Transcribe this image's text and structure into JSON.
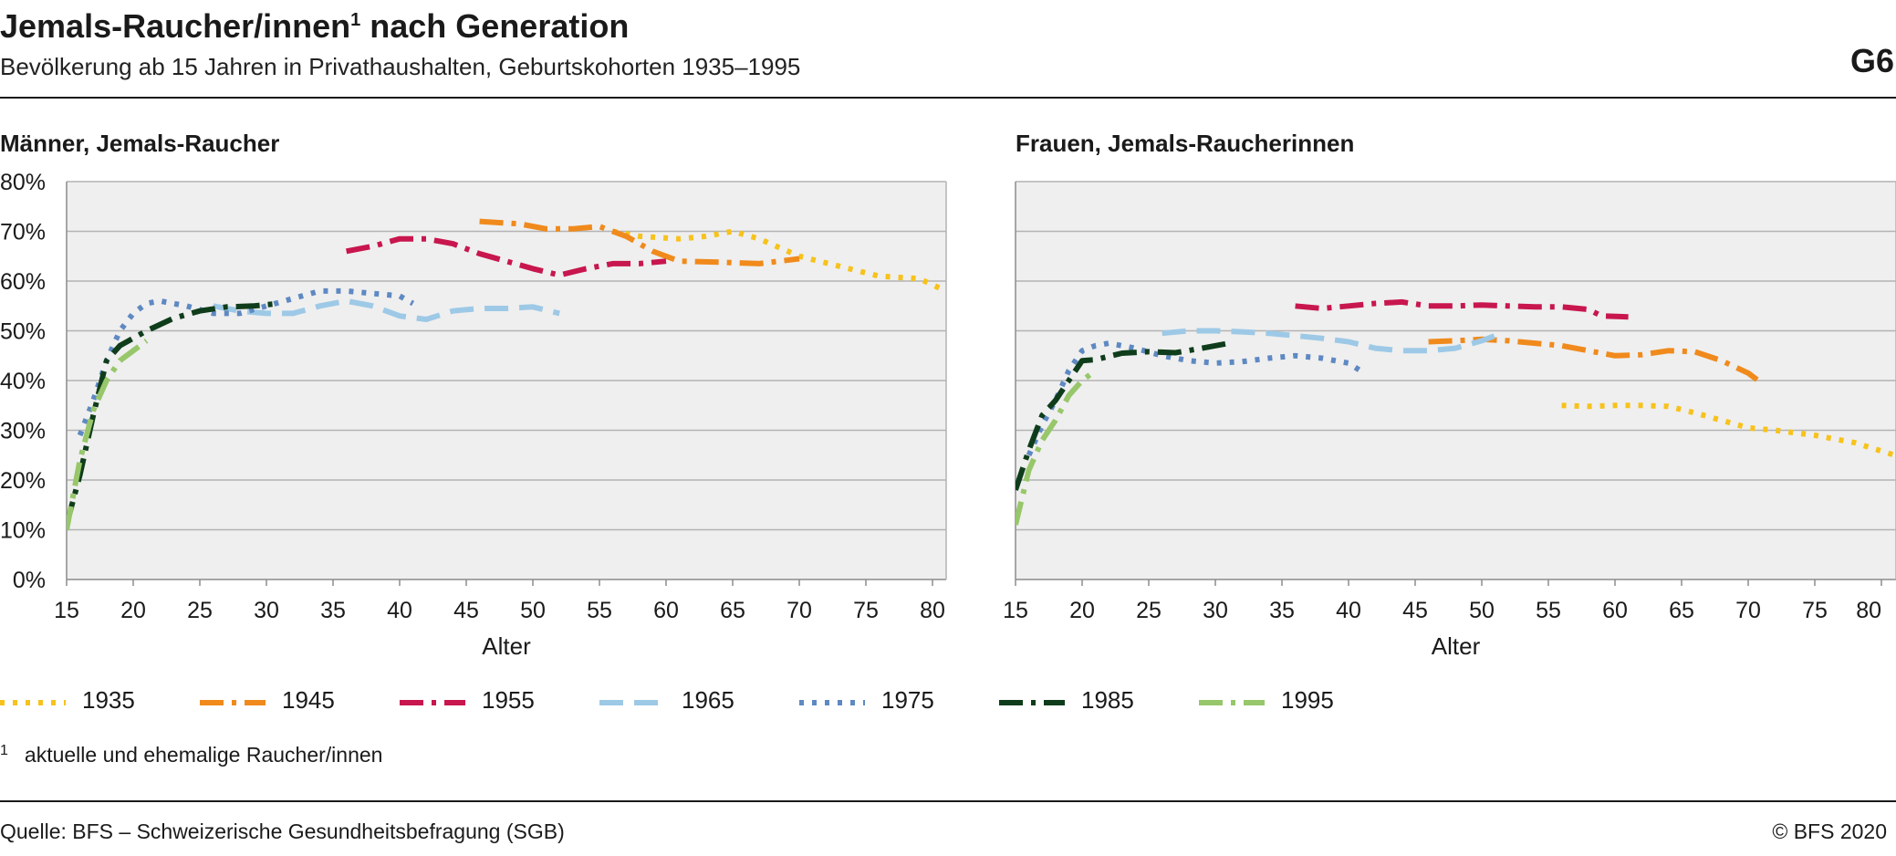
{
  "header": {
    "title": "Jemals-Raucher/innen",
    "title_sup": "1",
    "title_rest": " nach Generation",
    "subtitle": "Bevölkerung ab 15 Jahren in Privathaushalten, Geburtskohorten 1935–1995",
    "figure_number": "G6"
  },
  "footnote": {
    "mark": "1",
    "text": "aktuelle und ehemalige Raucher/innen"
  },
  "source": "Quelle: BFS – Schweizerische Gesundheitsbefragung (SGB)",
  "copyright": "© BFS 2020",
  "colors": {
    "1935": "#f7c21b",
    "1945": "#f08a1c",
    "1955": "#c8164e",
    "1965": "#9dc9e6",
    "1975": "#5e89c2",
    "1985": "#0f3d1b",
    "1995": "#97c76a",
    "plot_bg": "#efefef",
    "grid": "#b3b3b3"
  },
  "legend": [
    {
      "label": "1935",
      "dash": "dot"
    },
    {
      "label": "1945",
      "dash": "dashdot"
    },
    {
      "label": "1955",
      "dash": "dashdot"
    },
    {
      "label": "1965",
      "dash": "dash"
    },
    {
      "label": "1975",
      "dash": "dot"
    },
    {
      "label": "1985",
      "dash": "dashdot"
    },
    {
      "label": "1995",
      "dash": "dashdot"
    }
  ],
  "chart_data": [
    {
      "type": "line",
      "title": "Männer, Jemals-Raucher",
      "xlabel": "Alter",
      "ylabel": "",
      "xlim": [
        15,
        81
      ],
      "ylim": [
        0,
        80
      ],
      "xticks": [
        15,
        20,
        25,
        30,
        35,
        40,
        45,
        50,
        55,
        60,
        65,
        70,
        75,
        80
      ],
      "yticks": [
        "0%",
        "10%",
        "20%",
        "30%",
        "40%",
        "50%",
        "60%",
        "70%",
        "80%"
      ],
      "grid": true,
      "legend_position": "bottom",
      "series": [
        {
          "name": "1935",
          "points": [
            [
              56,
              70
            ],
            [
              58,
              69
            ],
            [
              61,
              68.5
            ],
            [
              63,
              69
            ],
            [
              65,
              70
            ],
            [
              67,
              68.5
            ],
            [
              70,
              65
            ],
            [
              73,
              63
            ],
            [
              76,
              61
            ],
            [
              79,
              60.5
            ],
            [
              81,
              58
            ]
          ]
        },
        {
          "name": "1945",
          "points": [
            [
              46,
              72
            ],
            [
              49,
              71.5
            ],
            [
              51,
              70.5
            ],
            [
              53,
              70.5
            ],
            [
              55,
              71
            ],
            [
              57,
              69
            ],
            [
              59,
              66
            ],
            [
              61,
              64
            ],
            [
              64,
              63.8
            ],
            [
              67,
              63.5
            ],
            [
              70,
              64.5
            ]
          ]
        },
        {
          "name": "1955",
          "points": [
            [
              36,
              66
            ],
            [
              38,
              67
            ],
            [
              40,
              68.5
            ],
            [
              42,
              68.5
            ],
            [
              44,
              67.5
            ],
            [
              46,
              65.5
            ],
            [
              48,
              64
            ],
            [
              50,
              62.5
            ],
            [
              52,
              61.2
            ],
            [
              54,
              62.5
            ],
            [
              56,
              63.5
            ],
            [
              58,
              63.5
            ],
            [
              60,
              64
            ]
          ]
        },
        {
          "name": "1965",
          "points": [
            [
              26,
              55
            ],
            [
              28,
              54
            ],
            [
              30,
              53.5
            ],
            [
              32,
              53.5
            ],
            [
              34,
              55
            ],
            [
              36,
              56
            ],
            [
              38,
              55
            ],
            [
              40,
              53
            ],
            [
              42,
              52.3
            ],
            [
              44,
              54
            ],
            [
              46,
              54.5
            ],
            [
              48,
              54.5
            ],
            [
              50,
              54.8
            ],
            [
              52,
              53.5
            ]
          ]
        },
        {
          "name": "1975",
          "points": [
            [
              16,
              29
            ],
            [
              17,
              36
            ],
            [
              18,
              44
            ],
            [
              19,
              50
            ],
            [
              20,
              53.5
            ],
            [
              21,
              55.5
            ],
            [
              22,
              56
            ],
            [
              24,
              55
            ],
            [
              26,
              53.5
            ],
            [
              28,
              53.5
            ],
            [
              30,
              55
            ],
            [
              32,
              56.5
            ],
            [
              34,
              58
            ],
            [
              36,
              58
            ],
            [
              38,
              57.5
            ],
            [
              40,
              57
            ],
            [
              41,
              55.5
            ]
          ]
        },
        {
          "name": "1985",
          "points": [
            [
              15,
              11
            ],
            [
              16,
              21
            ],
            [
              17,
              33
            ],
            [
              18,
              44
            ],
            [
              19,
              47
            ],
            [
              20,
              48.5
            ],
            [
              21,
              50
            ],
            [
              23,
              52.5
            ],
            [
              25,
              54
            ],
            [
              27,
              54.8
            ],
            [
              29,
              55
            ],
            [
              31,
              55.5
            ]
          ]
        },
        {
          "name": "1995",
          "points": [
            [
              15,
              10
            ],
            [
              16,
              24
            ],
            [
              17,
              34
            ],
            [
              18,
              40
            ],
            [
              19,
              44
            ],
            [
              20,
              46
            ],
            [
              21,
              48
            ]
          ]
        }
      ]
    },
    {
      "type": "line",
      "title": "Frauen, Jemals-Raucherinnen",
      "xlabel": "Alter",
      "ylabel": "",
      "xlim": [
        15,
        81
      ],
      "ylim": [
        0,
        80
      ],
      "xticks": [
        15,
        20,
        25,
        30,
        35,
        40,
        45,
        50,
        55,
        60,
        65,
        70,
        75,
        80
      ],
      "yticks": [],
      "grid": true,
      "legend_position": "bottom",
      "series": [
        {
          "name": "1935",
          "points": [
            [
              56,
              35
            ],
            [
              58,
              34.8
            ],
            [
              60,
              35
            ],
            [
              62,
              35
            ],
            [
              64,
              34.8
            ],
            [
              66,
              33.5
            ],
            [
              68,
              32
            ],
            [
              70,
              30.5
            ],
            [
              72,
              30
            ],
            [
              75,
              29
            ],
            [
              78,
              27.5
            ],
            [
              81,
              25
            ]
          ]
        },
        {
          "name": "1945",
          "points": [
            [
              46,
              47.8
            ],
            [
              48,
              48
            ],
            [
              50,
              48.3
            ],
            [
              52,
              48
            ],
            [
              54,
              47.5
            ],
            [
              56,
              47
            ],
            [
              58,
              46
            ],
            [
              60,
              45
            ],
            [
              62,
              45.2
            ],
            [
              64,
              46
            ],
            [
              66,
              45.8
            ],
            [
              68,
              44
            ],
            [
              70,
              41.5
            ],
            [
              71,
              39.5
            ]
          ]
        },
        {
          "name": "1955",
          "points": [
            [
              36,
              55
            ],
            [
              38,
              54.5
            ],
            [
              40,
              55
            ],
            [
              42,
              55.5
            ],
            [
              44,
              55.8
            ],
            [
              46,
              55
            ],
            [
              48,
              55
            ],
            [
              50,
              55.2
            ],
            [
              52,
              55
            ],
            [
              54,
              54.8
            ],
            [
              56,
              54.8
            ],
            [
              58,
              54.3
            ],
            [
              59,
              53
            ],
            [
              61,
              52.8
            ]
          ]
        },
        {
          "name": "1965",
          "points": [
            [
              26,
              49.5
            ],
            [
              28,
              50
            ],
            [
              30,
              50
            ],
            [
              32,
              49.8
            ],
            [
              34,
              49.5
            ],
            [
              36,
              49
            ],
            [
              38,
              48.5
            ],
            [
              40,
              47.8
            ],
            [
              42,
              46.5
            ],
            [
              44,
              46
            ],
            [
              46,
              46
            ],
            [
              48,
              46.5
            ],
            [
              50,
              48
            ],
            [
              51,
              49
            ]
          ]
        },
        {
          "name": "1975",
          "points": [
            [
              16,
              25
            ],
            [
              17,
              31
            ],
            [
              18,
              36
            ],
            [
              19,
              42
            ],
            [
              20,
              46
            ],
            [
              21,
              47
            ],
            [
              22,
              47.5
            ],
            [
              24,
              46.5
            ],
            [
              26,
              45
            ],
            [
              28,
              44
            ],
            [
              30,
              43.5
            ],
            [
              32,
              43.8
            ],
            [
              34,
              44.5
            ],
            [
              36,
              45
            ],
            [
              38,
              44.5
            ],
            [
              40,
              43.5
            ],
            [
              41,
              41.8
            ]
          ]
        },
        {
          "name": "1985",
          "points": [
            [
              15,
              18
            ],
            [
              16,
              26
            ],
            [
              17,
              33
            ],
            [
              18,
              36
            ],
            [
              19,
              40
            ],
            [
              20,
              44
            ],
            [
              21,
              44.2
            ],
            [
              23,
              45.5
            ],
            [
              25,
              45.8
            ],
            [
              27,
              45.6
            ],
            [
              29,
              46.5
            ],
            [
              31,
              47.5
            ]
          ]
        },
        {
          "name": "1995",
          "points": [
            [
              15,
              11
            ],
            [
              16,
              22
            ],
            [
              17,
              28
            ],
            [
              18,
              32
            ],
            [
              19,
              37
            ],
            [
              20,
              40
            ],
            [
              21,
              42
            ]
          ]
        }
      ]
    }
  ]
}
